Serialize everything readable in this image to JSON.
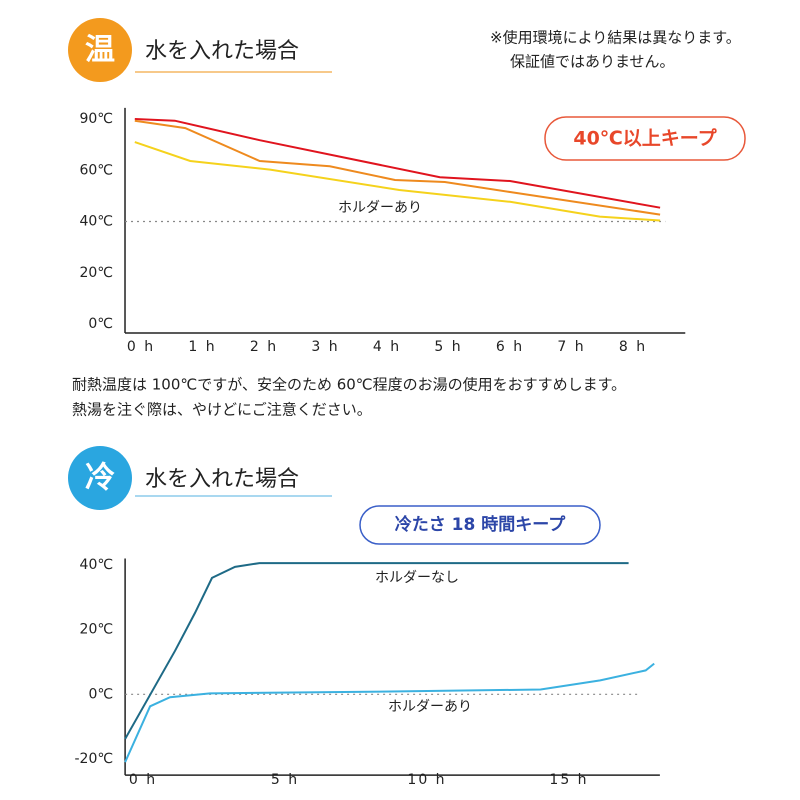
{
  "note": [
    "※使用環境により結果は異なります。",
    "保証値ではありません。"
  ],
  "caption": [
    "耐熱温度は 100℃ですが、安全のため 60℃程度のお湯の使用をおすすめします。",
    "熱湯を注ぐ際は、やけどにご注意ください。"
  ],
  "chart_data": [
    {
      "type": "line",
      "badge": "温",
      "title": "水を入れた場合",
      "callout": "40℃以上キープ",
      "annotation": "ホルダーあり",
      "xlim": [
        -0.26,
        8.85
      ],
      "ylim": [
        -3.5,
        96.5
      ],
      "reference_line": 40,
      "xticks": [
        {
          "value": 0,
          "label": "0 h"
        },
        {
          "value": 1,
          "label": "1 h"
        },
        {
          "value": 2,
          "label": "2 h"
        },
        {
          "value": 3,
          "label": "3 h"
        },
        {
          "value": 4,
          "label": "4 h"
        },
        {
          "value": 5,
          "label": "5 h"
        },
        {
          "value": 6,
          "label": "6 h"
        },
        {
          "value": 7,
          "label": "7 h"
        },
        {
          "value": 8,
          "label": "8 h"
        }
      ],
      "yticks": [
        {
          "value": 0,
          "label": "0℃"
        },
        {
          "value": 20,
          "label": "20℃"
        },
        {
          "value": 40,
          "label": "40℃"
        },
        {
          "value": 60,
          "label": "60℃"
        },
        {
          "value": 90,
          "label": "90℃"
        }
      ],
      "series": [
        {
          "color": "#e0141e",
          "x": [
            -0.1,
            0.55,
            1.93,
            4.86,
            6.0,
            8.44
          ],
          "values": [
            90,
            89,
            77.6,
            57.3,
            55.8,
            45.4
          ]
        },
        {
          "color": "#ee8a1e",
          "x": [
            -0.1,
            0.72,
            1.93,
            3.07,
            4.13,
            4.94,
            6.0,
            8.44
          ],
          "values": [
            89,
            84.7,
            65.4,
            62.3,
            56.2,
            55.4,
            51.5,
            42.7
          ]
        },
        {
          "color": "#f5d21c",
          "x": [
            -0.1,
            0.8,
            2.1,
            4.2,
            6.0,
            7.46,
            8.44
          ],
          "values": [
            76.5,
            65.4,
            60.4,
            52.3,
            47.7,
            41.9,
            40.4
          ]
        }
      ]
    },
    {
      "type": "line",
      "badge": "冷",
      "title": "水を入れた場合",
      "callout": "冷たさ 18 時間キープ",
      "xlim": [
        -0.63,
        18.2
      ],
      "ylim": [
        -25,
        42
      ],
      "reference_line": 0,
      "xticks": [
        {
          "value": 0,
          "label": "0 h"
        },
        {
          "value": 5,
          "label": "5 h"
        },
        {
          "value": 10,
          "label": "10 h"
        },
        {
          "value": 15,
          "label": "15 h"
        }
      ],
      "yticks": [
        {
          "value": -20,
          "label": "-20℃"
        },
        {
          "value": 0,
          "label": "0℃"
        },
        {
          "value": 20,
          "label": "20℃"
        },
        {
          "value": 40,
          "label": "40℃"
        }
      ],
      "series": [
        {
          "name": "ホルダーなし",
          "color": "#1e6a86",
          "x": [
            -0.63,
            1.13,
            1.83,
            2.43,
            3.24,
            4.1,
            17.1
          ],
          "values": [
            -13.8,
            13.5,
            25.2,
            36,
            39.4,
            40.6,
            40.6
          ]
        },
        {
          "name": "ホルダーあり",
          "color": "#3bb1e0",
          "x": [
            -0.63,
            0.25,
            0.95,
            2.36,
            9.05,
            14,
            16.1,
            17.7,
            18
          ],
          "values": [
            -21,
            -3.7,
            -0.9,
            0.3,
            0.9,
            1.5,
            4.3,
            7.4,
            9.5
          ]
        }
      ]
    }
  ]
}
